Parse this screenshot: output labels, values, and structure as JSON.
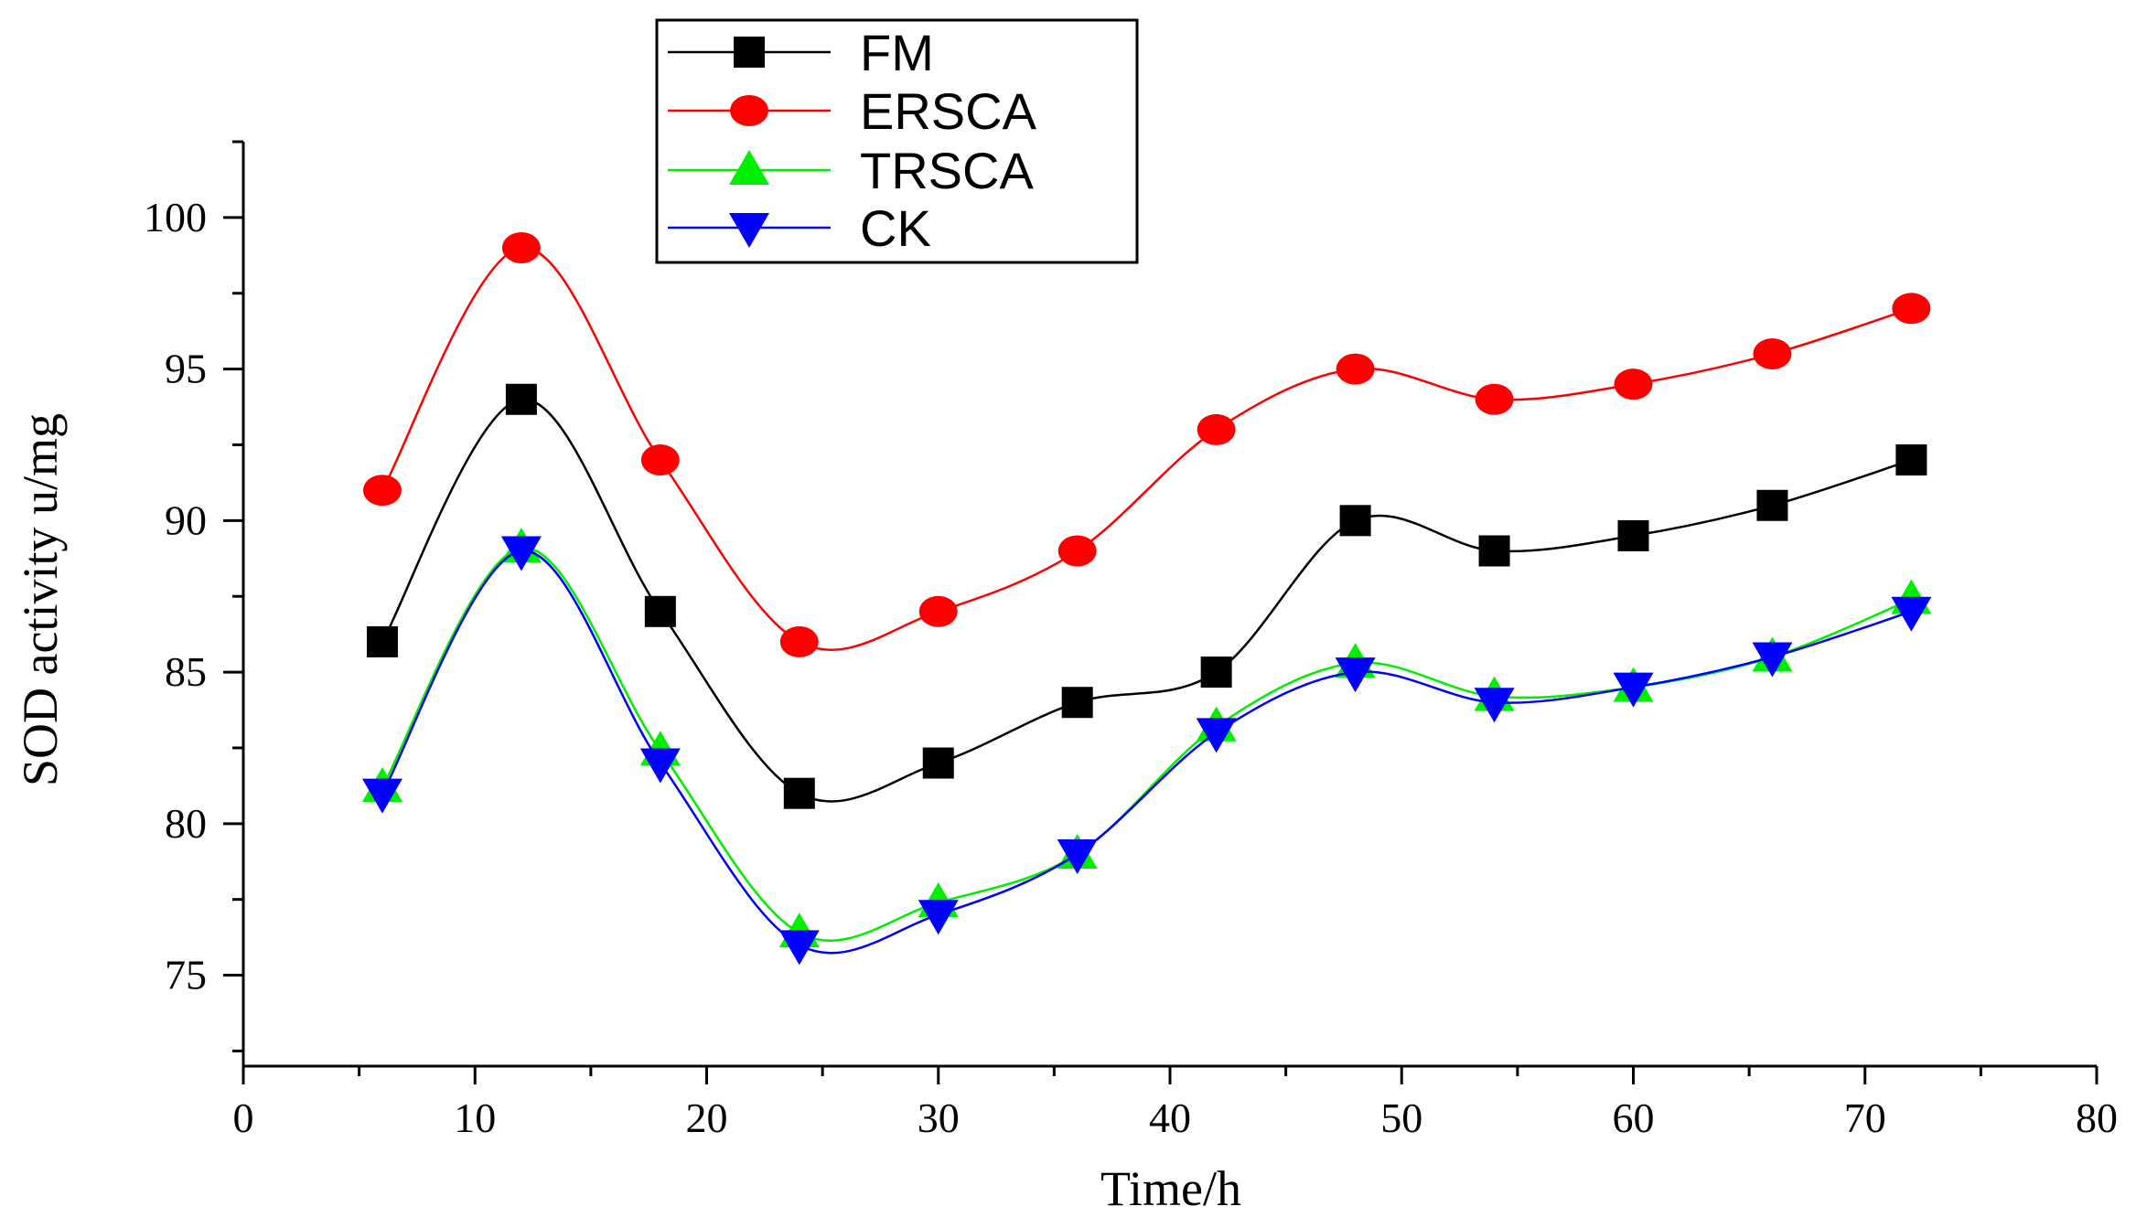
{
  "chart_data": {
    "type": "line",
    "title": "",
    "xlabel": "Time/h",
    "ylabel": "SOD activity u/mg",
    "xlim": [
      0,
      80
    ],
    "ylim": [
      72,
      102.5
    ],
    "xticks": [
      0,
      10,
      20,
      30,
      40,
      50,
      60,
      70,
      80
    ],
    "xtick_labels": [
      "0",
      "10",
      "20",
      "30",
      "40",
      "50",
      "60",
      "70",
      "80"
    ],
    "yticks": [
      75,
      80,
      85,
      90,
      95,
      100
    ],
    "ytick_labels": [
      "75",
      "80",
      "85",
      "90",
      "95",
      "100"
    ],
    "grid": false,
    "legend_position": "top-center",
    "x": [
      6,
      12,
      18,
      24,
      30,
      36,
      42,
      48,
      54,
      60,
      66,
      72
    ],
    "series": [
      {
        "name": "FM",
        "color": "#000000",
        "marker": "square",
        "values": [
          86,
          94,
          87,
          81,
          82,
          84,
          85,
          90,
          89,
          89.5,
          90.5,
          92
        ]
      },
      {
        "name": "ERSCA",
        "color": "#ff0000",
        "marker": "circle",
        "values": [
          91,
          99,
          92,
          86,
          87,
          89,
          93,
          95,
          94,
          94.5,
          95.5,
          97
        ]
      },
      {
        "name": "TRSCA",
        "color": "#00ee00",
        "marker": "triangle-up",
        "values": [
          81.2,
          89.1,
          82.4,
          76.4,
          77.4,
          79,
          83.2,
          85.3,
          84.2,
          84.5,
          85.5,
          87.4
        ]
      },
      {
        "name": "CK",
        "color": "#0000ff",
        "marker": "triangle-down",
        "values": [
          81,
          89,
          82,
          76,
          77,
          79,
          83,
          85,
          84,
          84.5,
          85.5,
          87
        ]
      }
    ]
  }
}
